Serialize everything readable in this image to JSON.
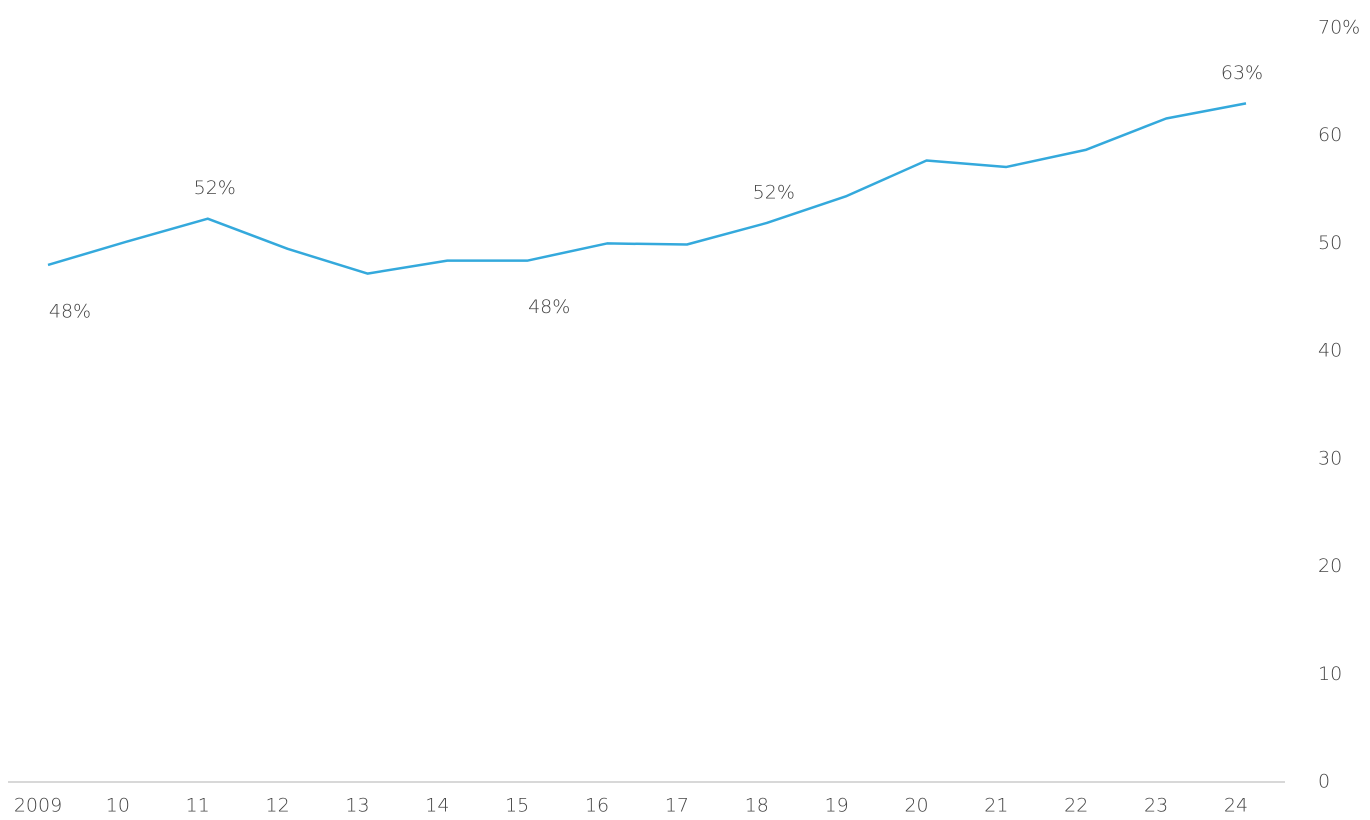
{
  "chart_data": {
    "type": "line",
    "categories": [
      "2009",
      "10",
      "11",
      "12",
      "13",
      "14",
      "15",
      "16",
      "17",
      "18",
      "19",
      "20",
      "21",
      "22",
      "23",
      "24"
    ],
    "series": [
      {
        "color": "#34a9dc",
        "values": [
          48,
          50.2,
          52.3,
          49.5,
          47.2,
          48.4,
          48.4,
          50.0,
          49.9,
          51.9,
          54.4,
          57.7,
          57.1,
          58.7,
          61.6,
          63.0
        ],
        "value_labels": [
          "48%",
          null,
          "52%",
          null,
          null,
          null,
          "48%",
          null,
          null,
          "52%",
          null,
          null,
          null,
          null,
          null,
          "63%"
        ]
      }
    ],
    "ylim": [
      0,
      70
    ],
    "yticks": [
      0,
      10,
      20,
      30,
      40,
      50,
      60,
      {
        "value": 70,
        "label": "70%"
      }
    ],
    "grid": false
  }
}
